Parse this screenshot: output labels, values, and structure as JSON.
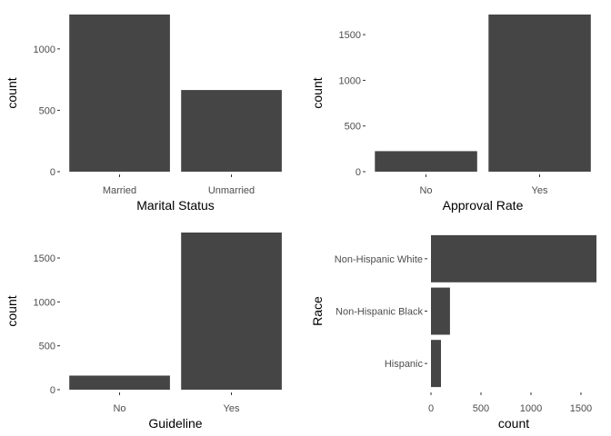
{
  "chart_data": [
    {
      "type": "bar",
      "orientation": "vertical",
      "categories": [
        "Married",
        "Unmarried"
      ],
      "values": [
        1280,
        665
      ],
      "xlabel": "Marital Status",
      "ylabel": "count",
      "ylim": [
        0,
        1280
      ],
      "yticks": [
        0,
        500,
        1000
      ],
      "grid": false,
      "bar_color": "#454545"
    },
    {
      "type": "bar",
      "orientation": "vertical",
      "categories": [
        "No",
        "Yes"
      ],
      "values": [
        225,
        1720
      ],
      "xlabel": "Approval Rate",
      "ylabel": "count",
      "ylim": [
        0,
        1720
      ],
      "yticks": [
        0,
        500,
        1000,
        1500
      ],
      "grid": false,
      "bar_color": "#454545"
    },
    {
      "type": "bar",
      "orientation": "vertical",
      "categories": [
        "No",
        "Yes"
      ],
      "values": [
        160,
        1790
      ],
      "xlabel": "Guideline",
      "ylabel": "count",
      "ylim": [
        0,
        1790
      ],
      "yticks": [
        0,
        500,
        1000,
        1500
      ],
      "grid": false,
      "bar_color": "#454545"
    },
    {
      "type": "bar",
      "orientation": "horizontal",
      "categories": [
        "Hispanic",
        "Non-Hispanic Black",
        "Non-Hispanic White"
      ],
      "values": [
        100,
        190,
        1655
      ],
      "xlabel": "count",
      "ylabel": "Race",
      "xlim": [
        0,
        1655
      ],
      "xticks": [
        0,
        500,
        1000,
        1500
      ],
      "grid": false,
      "bar_color": "#454545"
    }
  ]
}
